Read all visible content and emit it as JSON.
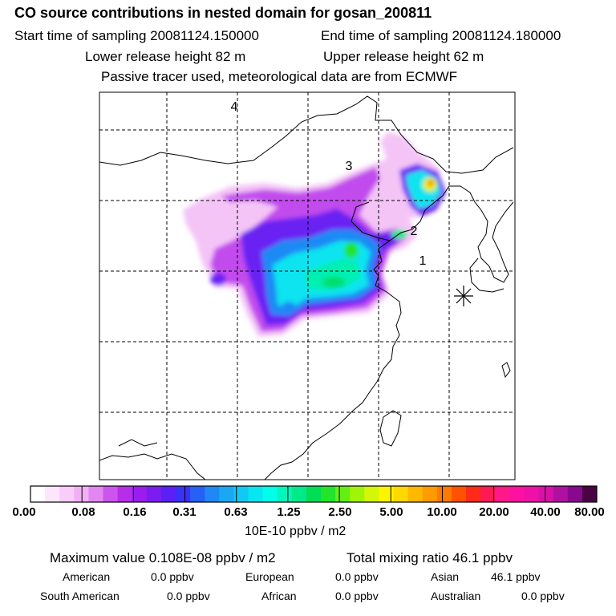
{
  "header": {
    "title": "CO  source contributions in nested domain for gosan_200811",
    "start_time": "Start time of sampling 20081124.150000",
    "end_time": "End time of sampling 20081124.180000",
    "lower_height": "Lower release height   82 m",
    "upper_height": "Upper release height   62 m",
    "passive": "Passive tracer used, meteorological data are from ECMWF"
  },
  "map": {
    "labels": [
      "4",
      "3",
      "2",
      "1"
    ],
    "receptor_marker": "asterisk-icon"
  },
  "colorbar": {
    "colors": [
      "#ffffff",
      "#fde6fd",
      "#f9ccf9",
      "#f1b0f4",
      "#e387f0",
      "#cc55ee",
      "#b82ee8",
      "#9a1ded",
      "#7c1cf0",
      "#5a20f5",
      "#3a30f7",
      "#2660f5",
      "#1f88f5",
      "#1aa8f5",
      "#12c8f4",
      "#08e6f0",
      "#00ffea",
      "#00f6bb",
      "#00ea8a",
      "#00de55",
      "#22e42a",
      "#66ee14",
      "#a0f408",
      "#d4f608",
      "#fff400",
      "#ffd800",
      "#ffb800",
      "#ff9a00",
      "#ff7a00",
      "#ff5200",
      "#ff2a18",
      "#ff1a55",
      "#ff1888",
      "#ff10a2",
      "#ee10a8",
      "#d812a8",
      "#b010a0",
      "#880890",
      "#4a0444"
    ],
    "ticks": [
      "0.00",
      "0.08",
      "0.16",
      "0.31",
      "0.63",
      "1.25",
      "2.50",
      "5.00",
      "10.00",
      "20.00",
      "40.00",
      "80.00"
    ],
    "units": "10E-10 ppbv / m2"
  },
  "footer": {
    "max_value": "Maximum value  0.108E-08 ppbv / m2",
    "total_mixing": "Total mixing ratio       46.1 ppbv",
    "contributions": [
      {
        "name": "American",
        "value": "0.0 ppbv"
      },
      {
        "name": "European",
        "value": "0.0 ppbv"
      },
      {
        "name": "Asian",
        "value": "46.1 ppbv"
      },
      {
        "name": "South American",
        "value": "0.0 ppbv"
      },
      {
        "name": "African",
        "value": "0.0 ppbv"
      },
      {
        "name": "Australian",
        "value": "0.0 ppbv"
      }
    ]
  }
}
